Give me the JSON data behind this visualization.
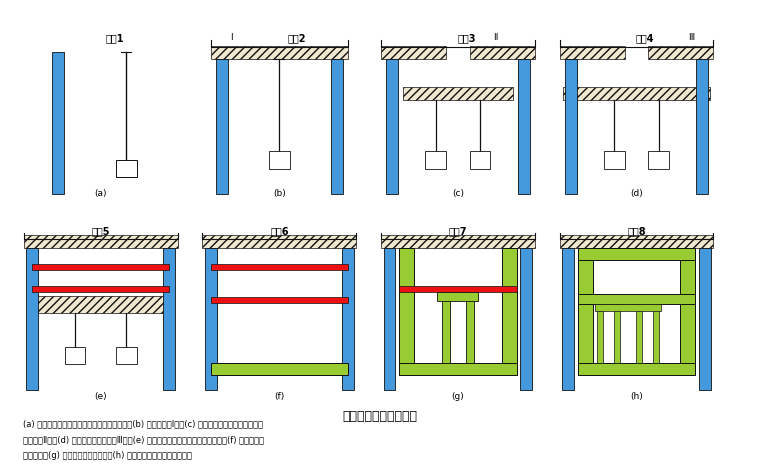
{
  "title": "盖挖半逆作法施工流程",
  "steps": [
    "步骤1",
    "步骤2",
    "步骤3",
    "步骤4",
    "步骤5",
    "步骤6",
    "步骤7",
    "步骤8"
  ],
  "labels": [
    "(a)",
    "(b)",
    "(c)",
    "(d)",
    "(e)",
    "(f)",
    "(g)",
    "(h)"
  ],
  "colors": {
    "blue_wall": "#4499DD",
    "yellow_top": "#FFCC00",
    "red_support": "#EE1111",
    "green_structure": "#99CC33",
    "black": "#111111",
    "white": "#FFFFFF",
    "hatch_bg": "#F0E8D0"
  },
  "caption_lines": [
    "(a) 构筑连续墙中间支承桩及临时性挡土设备；(b) 构筑顶板（Ⅰ）；(c) 打设中间桩、临时性挡土及构",
    "筑顶板（Ⅱ）；(d) 构筑连续墙及顶板（Ⅲ）；(e) 依序向下开挖及逐层安装水平支撑；(f) 向下开挖、",
    "构筑底板；(g) 构筑侧墙、柱及楼板；(h) 构筑侧墙及内部之其余结构物"
  ],
  "roman_labels": [
    "Ⅰ",
    "Ⅱ",
    "Ⅲ"
  ]
}
